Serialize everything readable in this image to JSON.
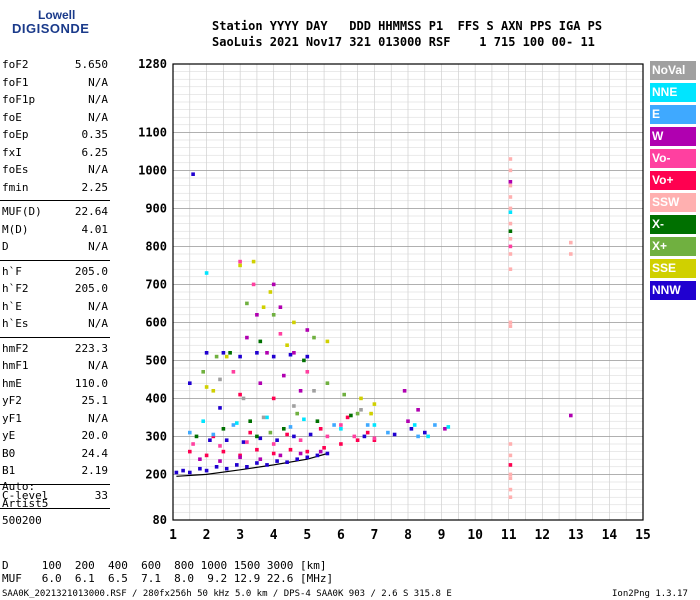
{
  "logo": {
    "line1": "Lowell",
    "line2": "DIGISONDE"
  },
  "header": {
    "line1": "Station YYYY DAY   DDD HHMMSS P1  FFS S AXN PPS IGA PS",
    "line2": "SaoLuis 2021 Nov17 321 013000 RSF    1 715 100 00- 11"
  },
  "params": [
    {
      "name": "foF2",
      "value": "5.650"
    },
    {
      "name": "foF1",
      "value": "N/A"
    },
    {
      "name": "foF1p",
      "value": "N/A"
    },
    {
      "name": "foE",
      "value": "N/A"
    },
    {
      "name": "foEp",
      "value": "0.35"
    },
    {
      "name": "fxI",
      "value": "6.25"
    },
    {
      "name": "foEs",
      "value": "N/A"
    },
    {
      "name": "fmin",
      "value": "2.25"
    },
    {
      "name": "MUF(D)",
      "value": "22.64"
    },
    {
      "name": "M(D)",
      "value": "4.01"
    },
    {
      "name": "D",
      "value": "N/A"
    },
    {
      "name": "h`F",
      "value": "205.0"
    },
    {
      "name": "h`F2",
      "value": "205.0"
    },
    {
      "name": "h`E",
      "value": "N/A"
    },
    {
      "name": "h`Es",
      "value": "N/A"
    },
    {
      "name": "hmF2",
      "value": "223.3"
    },
    {
      "name": "hmF1",
      "value": "N/A"
    },
    {
      "name": "hmE",
      "value": "110.0"
    },
    {
      "name": "yF2",
      "value": "25.1"
    },
    {
      "name": "yF1",
      "value": "N/A"
    },
    {
      "name": "yE",
      "value": "20.0"
    },
    {
      "name": "B0",
      "value": "24.4"
    },
    {
      "name": "B1",
      "value": "2.19"
    },
    {
      "name": "C-level",
      "value": "33"
    }
  ],
  "auto": {
    "label": "Auto:",
    "system": "Artist5",
    "version": "500200"
  },
  "legend": [
    {
      "label": "NoVal",
      "color": "#a0a0a0"
    },
    {
      "label": "NNE",
      "color": "#00e5ff"
    },
    {
      "label": "E",
      "color": "#3fa9ff"
    },
    {
      "label": "W",
      "color": "#b000b0"
    },
    {
      "label": "Vo-",
      "color": "#ff40a0"
    },
    {
      "label": "Vo+",
      "color": "#ff0050"
    },
    {
      "label": "SSW",
      "color": "#ffb0b0"
    },
    {
      "label": "X-",
      "color": "#007000"
    },
    {
      "label": "X+",
      "color": "#70b040"
    },
    {
      "label": "SSE",
      "color": "#d0d000"
    },
    {
      "label": "NNW",
      "color": "#2000d0"
    }
  ],
  "footer": {
    "d_row": "D     100  200  400  600  800 1000 1500 3000 [km]",
    "muf_row": "MUF   6.0  6.1  6.5  7.1  8.0  9.2 12.9 22.6 [MHz]",
    "file_info": "SAA0K_2021321013000.RSF / 280fx256h 50 kHz 5.0 km / DPS-4 SAA0K 903 / 2.6 S 315.8 E",
    "version": "Ion2Png 1.3.17"
  },
  "chart_data": {
    "type": "scatter",
    "title": "",
    "xlabel": "",
    "ylabel": "",
    "xlim": [
      1,
      15
    ],
    "ylim": [
      80,
      1280
    ],
    "x_ticks": [
      1,
      2,
      3,
      4,
      5,
      6,
      7,
      8,
      9,
      10,
      11,
      12,
      13,
      14,
      15
    ],
    "y_ticks": [
      80,
      200,
      300,
      400,
      500,
      600,
      700,
      800,
      900,
      1000,
      1100,
      1280
    ],
    "x_tick_labels": [
      "1",
      "2",
      "3",
      "4",
      "5",
      "6",
      "7",
      "8",
      "9",
      "10",
      "11",
      "12",
      "13",
      "14",
      "15"
    ],
    "y_tick_labels": [
      "80",
      "200",
      "300",
      "400",
      "500",
      "600",
      "700",
      "800",
      "900",
      "1000",
      "1100",
      "1280"
    ],
    "grid": true,
    "legend_position": "right",
    "trace": {
      "x": [
        1.1,
        2.0,
        3.0,
        4.0,
        5.0,
        5.6
      ],
      "y": [
        195,
        200,
        212,
        225,
        240,
        255
      ]
    },
    "series": [
      {
        "legend_index": 10,
        "points": [
          [
            1.1,
            205
          ],
          [
            1.3,
            210
          ],
          [
            1.5,
            205
          ],
          [
            1.8,
            215
          ],
          [
            2.0,
            210
          ],
          [
            2.3,
            220
          ],
          [
            2.6,
            215
          ],
          [
            2.9,
            225
          ],
          [
            3.2,
            220
          ],
          [
            3.5,
            230
          ],
          [
            3.8,
            225
          ],
          [
            4.1,
            235
          ],
          [
            4.4,
            232
          ],
          [
            4.7,
            240
          ],
          [
            5.0,
            245
          ],
          [
            5.3,
            250
          ],
          [
            5.6,
            255
          ],
          [
            2.1,
            290
          ],
          [
            2.6,
            290
          ],
          [
            3.1,
            285
          ],
          [
            3.6,
            295
          ],
          [
            4.1,
            290
          ],
          [
            4.6,
            300
          ],
          [
            5.1,
            305
          ],
          [
            2.0,
            520
          ],
          [
            2.5,
            520
          ],
          [
            3.0,
            510
          ],
          [
            3.5,
            520
          ],
          [
            4.0,
            510
          ],
          [
            4.5,
            515
          ],
          [
            5.0,
            510
          ],
          [
            1.6,
            990
          ],
          [
            1.5,
            440
          ],
          [
            2.4,
            375
          ],
          [
            6.7,
            300
          ],
          [
            7.6,
            305
          ],
          [
            8.1,
            320
          ],
          [
            8.5,
            310
          ]
        ]
      },
      {
        "legend_index": 5,
        "points": [
          [
            1.5,
            260
          ],
          [
            2.0,
            250
          ],
          [
            2.5,
            260
          ],
          [
            3.0,
            250
          ],
          [
            3.5,
            265
          ],
          [
            4.0,
            255
          ],
          [
            4.5,
            265
          ],
          [
            5.0,
            260
          ],
          [
            5.5,
            270
          ],
          [
            6.0,
            280
          ],
          [
            6.5,
            290
          ],
          [
            7.0,
            290
          ],
          [
            2.2,
            300
          ],
          [
            3.3,
            310
          ],
          [
            4.4,
            305
          ],
          [
            5.4,
            320
          ],
          [
            3.0,
            410
          ],
          [
            4.0,
            400
          ],
          [
            6.2,
            350
          ],
          [
            6.8,
            310
          ],
          [
            11.05,
            225
          ]
        ]
      },
      {
        "legend_index": 3,
        "points": [
          [
            1.8,
            240
          ],
          [
            2.4,
            235
          ],
          [
            3.0,
            245
          ],
          [
            3.6,
            240
          ],
          [
            4.2,
            250
          ],
          [
            4.8,
            255
          ],
          [
            5.4,
            260
          ],
          [
            3.2,
            560
          ],
          [
            3.5,
            620
          ],
          [
            3.8,
            520
          ],
          [
            4.0,
            700
          ],
          [
            4.2,
            640
          ],
          [
            4.6,
            520
          ],
          [
            5.0,
            580
          ],
          [
            4.3,
            460
          ],
          [
            3.6,
            440
          ],
          [
            4.8,
            420
          ],
          [
            8.0,
            340
          ],
          [
            8.3,
            370
          ],
          [
            7.9,
            420
          ],
          [
            9.1,
            320
          ],
          [
            11.05,
            970
          ],
          [
            12.85,
            355
          ]
        ]
      },
      {
        "legend_index": 4,
        "points": [
          [
            1.6,
            280
          ],
          [
            2.4,
            275
          ],
          [
            3.2,
            285
          ],
          [
            4.0,
            280
          ],
          [
            4.8,
            290
          ],
          [
            5.6,
            300
          ],
          [
            6.4,
            300
          ],
          [
            7.0,
            295
          ],
          [
            3.0,
            760
          ],
          [
            3.4,
            700
          ],
          [
            4.2,
            570
          ],
          [
            5.0,
            470
          ],
          [
            2.8,
            470
          ],
          [
            6.0,
            330
          ],
          [
            11.05,
            800
          ]
        ]
      },
      {
        "legend_index": 9,
        "points": [
          [
            2.0,
            430
          ],
          [
            2.6,
            510
          ],
          [
            3.0,
            750
          ],
          [
            3.4,
            760
          ],
          [
            3.9,
            680
          ],
          [
            4.6,
            600
          ],
          [
            5.6,
            550
          ],
          [
            6.6,
            400
          ],
          [
            7.0,
            385
          ],
          [
            6.9,
            360
          ],
          [
            2.2,
            420
          ],
          [
            4.4,
            540
          ],
          [
            3.7,
            640
          ]
        ]
      },
      {
        "legend_index": 7,
        "points": [
          [
            1.7,
            300
          ],
          [
            2.5,
            320
          ],
          [
            3.3,
            340
          ],
          [
            4.3,
            320
          ],
          [
            5.3,
            340
          ],
          [
            6.3,
            355
          ],
          [
            2.7,
            520
          ],
          [
            3.6,
            550
          ],
          [
            4.9,
            500
          ],
          [
            11.05,
            840
          ],
          [
            3.5,
            300
          ]
        ]
      },
      {
        "legend_index": 8,
        "points": [
          [
            1.9,
            470
          ],
          [
            2.3,
            510
          ],
          [
            3.2,
            650
          ],
          [
            4.0,
            620
          ],
          [
            5.2,
            560
          ],
          [
            5.6,
            440
          ],
          [
            6.1,
            410
          ],
          [
            6.5,
            360
          ],
          [
            3.9,
            310
          ],
          [
            4.7,
            360
          ]
        ]
      },
      {
        "legend_index": 1,
        "points": [
          [
            1.9,
            340
          ],
          [
            2.9,
            335
          ],
          [
            3.8,
            350
          ],
          [
            4.9,
            345
          ],
          [
            6.0,
            320
          ],
          [
            7.0,
            330
          ],
          [
            8.2,
            330
          ],
          [
            8.6,
            300
          ],
          [
            9.2,
            325
          ],
          [
            11.05,
            890
          ],
          [
            2.0,
            730
          ]
        ]
      },
      {
        "legend_index": 2,
        "points": [
          [
            1.5,
            310
          ],
          [
            2.2,
            305
          ],
          [
            2.8,
            330
          ],
          [
            4.5,
            325
          ],
          [
            5.8,
            330
          ],
          [
            7.4,
            310
          ],
          [
            8.3,
            300
          ],
          [
            8.8,
            330
          ],
          [
            6.8,
            330
          ]
        ]
      },
      {
        "legend_index": 0,
        "points": [
          [
            3.1,
            400
          ],
          [
            3.7,
            350
          ],
          [
            4.6,
            380
          ],
          [
            5.2,
            420
          ],
          [
            6.6,
            370
          ],
          [
            2.4,
            450
          ]
        ]
      },
      {
        "legend_index": 6,
        "points": [
          [
            11.05,
            740
          ],
          [
            11.05,
            780
          ],
          [
            11.05,
            820
          ],
          [
            11.05,
            860
          ],
          [
            11.05,
            900
          ],
          [
            11.05,
            930
          ],
          [
            11.05,
            960
          ],
          [
            11.05,
            1000
          ],
          [
            11.05,
            1030
          ],
          [
            11.05,
            600
          ],
          [
            11.05,
            590
          ],
          [
            11.05,
            280
          ],
          [
            11.05,
            250
          ],
          [
            11.05,
            200
          ],
          [
            11.05,
            190
          ],
          [
            11.05,
            160
          ],
          [
            11.05,
            140
          ],
          [
            12.85,
            810
          ],
          [
            12.85,
            780
          ]
        ]
      }
    ]
  }
}
